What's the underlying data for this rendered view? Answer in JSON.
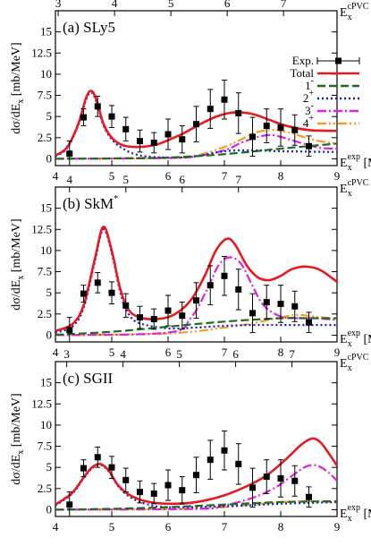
{
  "chart_data": [
    {
      "type": "line",
      "panel_label": "(a) SLy5",
      "xlabel_base": "E",
      "xlabel_sub": "x",
      "xlabel_sup": "exp",
      "xlabel_unit": "[MeV]",
      "top_label_base": "E",
      "top_label_sub": "x",
      "top_label_sup": "cPVC",
      "top_label_unit": "[MeV]",
      "ylabel": "dσ/dE",
      "ylabel_sub": "x",
      "ylabel_unit": " [mb/MeV]",
      "xlim": [
        4,
        9
      ],
      "ylim": [
        -0.8,
        17.5
      ],
      "yticks": [
        0,
        2.5,
        5,
        7.5,
        10,
        12.5,
        15
      ],
      "xticks": [
        4,
        5,
        6,
        7,
        8,
        9
      ],
      "top_ticks": [
        3,
        4,
        5,
        6,
        7
      ],
      "top_offset": 1.05,
      "experiment": {
        "x": [
          4.25,
          4.5,
          4.75,
          5.0,
          5.25,
          5.5,
          5.75,
          6.0,
          6.25,
          6.5,
          6.75,
          7.0,
          7.25,
          7.5,
          7.75,
          8.0,
          8.25,
          8.5
        ],
        "y": [
          0.6,
          4.9,
          6.2,
          5.0,
          3.5,
          2.1,
          1.9,
          2.9,
          2.3,
          4.1,
          5.9,
          7.0,
          5.4,
          2.6,
          3.9,
          3.7,
          3.4,
          1.5
        ],
        "err": [
          1.5,
          1.0,
          1.2,
          1.3,
          1.4,
          1.3,
          1.2,
          1.8,
          1.6,
          2.1,
          2.3,
          2.3,
          2.4,
          2.3,
          2.0,
          2.2,
          1.8,
          1.2
        ]
      },
      "series": [
        {
          "name": "Total",
          "color": "#e8191e",
          "dash": "solid",
          "x": [
            4.0,
            4.2,
            4.4,
            4.55,
            4.65,
            4.75,
            4.85,
            5.0,
            5.2,
            5.5,
            5.8,
            6.0,
            6.3,
            6.6,
            6.9,
            7.2,
            7.5,
            7.8,
            8.1,
            8.5,
            9.0
          ],
          "y": [
            0.4,
            1.3,
            4.0,
            7.3,
            8.0,
            6.5,
            4.2,
            2.5,
            1.6,
            1.4,
            1.7,
            2.2,
            3.1,
            4.2,
            5.1,
            5.5,
            5.3,
            4.6,
            3.9,
            3.4,
            3.3
          ]
        },
        {
          "name": "1-",
          "color": "#1e6b1e",
          "dash": "9,4",
          "x": [
            4.0,
            5.0,
            6.0,
            7.0,
            8.0,
            8.5,
            9.0
          ],
          "y": [
            0.0,
            0.05,
            0.15,
            0.55,
            1.2,
            1.5,
            1.8
          ]
        },
        {
          "name": "2+",
          "color": "#1818c8",
          "dash": "2,3",
          "x": [
            4.0,
            4.2,
            4.4,
            4.55,
            4.65,
            4.75,
            4.85,
            5.0,
            5.2,
            5.5,
            6.0,
            6.5,
            7.0,
            7.5,
            8.0,
            9.0
          ],
          "y": [
            0.3,
            1.2,
            3.9,
            7.1,
            7.8,
            6.3,
            4.0,
            2.3,
            1.2,
            0.4,
            0.15,
            0.3,
            0.9,
            1.0,
            0.9,
            0.8
          ]
        },
        {
          "name": "3-",
          "color": "#e020e0",
          "dash": "10,3,2,3",
          "x": [
            4.0,
            6.0,
            6.5,
            7.0,
            7.3,
            7.6,
            7.85,
            8.1,
            8.4,
            8.7,
            9.0
          ],
          "y": [
            0.0,
            0.1,
            0.3,
            1.0,
            1.9,
            2.6,
            2.8,
            2.4,
            1.8,
            1.3,
            1.2
          ]
        },
        {
          "name": "4+",
          "color": "#f0a020",
          "dash": "10,3,2,3,2,3",
          "x": [
            4.0,
            6.0,
            6.5,
            7.0,
            7.3,
            7.6,
            7.9,
            8.2,
            8.6,
            9.0
          ],
          "y": [
            0.0,
            0.1,
            0.4,
            1.4,
            2.3,
            3.2,
            3.4,
            3.0,
            2.2,
            1.8
          ]
        }
      ]
    },
    {
      "type": "line",
      "panel_label": "(b) SkM",
      "panel_label_sup": "*",
      "xlabel_base": "E",
      "xlabel_sub": "x",
      "xlabel_sup": "exp",
      "xlabel_unit": "[MeV]",
      "top_label_base": "E",
      "top_label_sub": "x",
      "top_label_sup": "cPVC",
      "top_label_unit": "[MeV]",
      "ylabel": "dσ/dE",
      "ylabel_sub": "x",
      "ylabel_unit": " [mb/MeV]",
      "xlim": [
        4,
        9
      ],
      "ylim": [
        -0.8,
        17.5
      ],
      "yticks": [
        0,
        2.5,
        5,
        7.5,
        10,
        12.5,
        15
      ],
      "xticks": [
        4,
        5,
        6,
        7,
        8,
        9
      ],
      "top_ticks": [
        4,
        5,
        6,
        7
      ],
      "top_offset": 0.25,
      "experiment": {
        "x": [
          4.25,
          4.5,
          4.75,
          5.0,
          5.25,
          5.5,
          5.75,
          6.0,
          6.25,
          6.5,
          6.75,
          7.0,
          7.25,
          7.5,
          7.75,
          8.0,
          8.25,
          8.5
        ],
        "y": [
          0.6,
          4.9,
          6.2,
          5.0,
          3.5,
          2.1,
          1.9,
          2.9,
          2.3,
          4.1,
          5.9,
          7.0,
          5.4,
          2.6,
          3.9,
          3.7,
          3.4,
          1.5
        ],
        "err": [
          1.5,
          1.0,
          1.2,
          1.3,
          1.4,
          1.3,
          1.2,
          1.8,
          1.6,
          2.1,
          2.3,
          2.3,
          2.4,
          2.3,
          2.0,
          2.2,
          1.8,
          1.2
        ]
      },
      "series": [
        {
          "name": "Total",
          "color": "#e8191e",
          "dash": "solid",
          "x": [
            4.0,
            4.3,
            4.5,
            4.7,
            4.85,
            5.0,
            5.15,
            5.3,
            5.5,
            5.8,
            6.1,
            6.4,
            6.65,
            6.85,
            7.05,
            7.2,
            7.4,
            7.6,
            7.8,
            8.0,
            8.2,
            8.45,
            8.7,
            9.0
          ],
          "y": [
            0.5,
            1.3,
            3.5,
            9.0,
            12.8,
            10.0,
            5.5,
            3.0,
            2.1,
            1.9,
            2.4,
            4.1,
            7.0,
            10.0,
            11.4,
            10.6,
            8.2,
            6.8,
            6.5,
            7.0,
            7.8,
            8.1,
            7.7,
            6.3
          ]
        },
        {
          "name": "1-",
          "color": "#1e6b1e",
          "dash": "9,4",
          "x": [
            4.0,
            5.0,
            6.0,
            7.0,
            8.0,
            8.5,
            9.0
          ],
          "y": [
            0.05,
            0.4,
            1.0,
            1.6,
            2.0,
            2.0,
            2.0
          ]
        },
        {
          "name": "2+",
          "color": "#1818c8",
          "dash": "2,3",
          "x": [
            4.0,
            4.3,
            4.5,
            4.7,
            4.85,
            5.0,
            5.15,
            5.3,
            5.5,
            6.0,
            6.5,
            7.0,
            7.5,
            8.0,
            9.0
          ],
          "y": [
            0.3,
            1.0,
            3.2,
            8.7,
            12.5,
            9.7,
            5.1,
            2.5,
            1.4,
            0.8,
            0.9,
            1.1,
            1.2,
            1.2,
            1.2
          ]
        },
        {
          "name": "3-",
          "color": "#e020e0",
          "dash": "10,3,2,3",
          "x": [
            4.0,
            6.0,
            6.4,
            6.7,
            6.9,
            7.1,
            7.3,
            7.5,
            7.7,
            8.0,
            8.3,
            8.6,
            9.0
          ],
          "y": [
            0.0,
            0.3,
            2.0,
            5.5,
            8.3,
            9.2,
            8.4,
            5.8,
            3.5,
            2.2,
            2.0,
            2.0,
            1.8
          ]
        },
        {
          "name": "4+",
          "color": "#f0a020",
          "dash": "10,3,2,3,2,3",
          "x": [
            4.0,
            6.0,
            7.0,
            7.5,
            8.0,
            8.3,
            8.6,
            9.0
          ],
          "y": [
            0.0,
            0.2,
            0.9,
            1.4,
            2.1,
            2.4,
            2.2,
            1.9
          ]
        }
      ]
    },
    {
      "type": "line",
      "panel_label": "(c) SGII",
      "xlabel_base": "E",
      "xlabel_sub": "x",
      "xlabel_sup": "exp",
      "xlabel_unit": "[MeV]",
      "top_label_base": "E",
      "top_label_sub": "x",
      "top_label_sup": "cPVC",
      "top_label_unit": "[MeV]",
      "ylabel": "dσ/dE",
      "ylabel_sub": "x",
      "ylabel_unit": " [mb/MeV]",
      "xlim": [
        4,
        9
      ],
      "ylim": [
        -0.8,
        17.5
      ],
      "yticks": [
        0,
        2.5,
        5,
        7.5,
        10,
        12.5,
        15
      ],
      "xticks": [
        4,
        5,
        6,
        7,
        8,
        9
      ],
      "top_ticks": [
        3,
        4,
        5,
        6,
        7
      ],
      "top_offset": 1.2,
      "experiment": {
        "x": [
          4.25,
          4.5,
          4.75,
          5.0,
          5.25,
          5.5,
          5.75,
          6.0,
          6.25,
          6.5,
          6.75,
          7.0,
          7.25,
          7.5,
          7.75,
          8.0,
          8.25,
          8.5
        ],
        "y": [
          0.6,
          4.9,
          6.2,
          5.0,
          3.5,
          2.1,
          1.9,
          2.9,
          2.3,
          4.1,
          5.9,
          7.0,
          5.4,
          2.6,
          3.9,
          3.7,
          3.4,
          1.5
        ],
        "err": [
          1.5,
          1.0,
          1.2,
          1.3,
          1.4,
          1.3,
          1.2,
          1.8,
          1.6,
          2.1,
          2.3,
          2.3,
          2.4,
          2.3,
          2.0,
          2.2,
          1.8,
          1.2
        ]
      },
      "series": [
        {
          "name": "Total",
          "color": "#e8191e",
          "dash": "solid",
          "x": [
            4.0,
            4.3,
            4.5,
            4.65,
            4.8,
            4.95,
            5.1,
            5.3,
            5.6,
            6.0,
            6.5,
            7.0,
            7.5,
            7.8,
            8.1,
            8.35,
            8.55,
            8.7,
            8.85,
            9.0
          ],
          "y": [
            0.6,
            2.0,
            3.8,
            5.0,
            5.4,
            4.6,
            3.0,
            1.8,
            1.0,
            0.7,
            0.9,
            1.7,
            3.1,
            4.3,
            6.0,
            7.6,
            8.4,
            8.0,
            6.7,
            5.2
          ]
        },
        {
          "name": "1-",
          "color": "#1e6b1e",
          "dash": "9,4",
          "x": [
            4.0,
            5.0,
            6.0,
            7.0,
            8.0,
            9.0
          ],
          "y": [
            0.0,
            0.1,
            0.3,
            0.6,
            0.9,
            1.0
          ]
        },
        {
          "name": "2+",
          "color": "#1818c8",
          "dash": "2,3",
          "x": [
            4.0,
            4.3,
            4.5,
            4.65,
            4.8,
            4.95,
            5.1,
            5.3,
            5.6,
            6.0,
            7.0,
            8.0,
            9.0
          ],
          "y": [
            0.5,
            1.9,
            3.7,
            4.9,
            5.3,
            4.5,
            2.9,
            1.6,
            0.7,
            0.3,
            0.4,
            0.7,
            0.9
          ]
        },
        {
          "name": "3-",
          "color": "#e020e0",
          "dash": "10,3,2,3",
          "x": [
            4.0,
            6.5,
            7.0,
            7.5,
            7.9,
            8.2,
            8.45,
            8.65,
            8.85,
            9.0
          ],
          "y": [
            0.0,
            0.1,
            0.5,
            1.4,
            2.6,
            4.0,
            5.1,
            5.2,
            4.4,
            3.4
          ]
        },
        {
          "name": "4+",
          "color": "#f0a020",
          "dash": "10,3,2,3,2,3",
          "x": [
            4.0,
            6.5,
            7.0,
            7.5,
            8.0,
            8.5,
            9.0
          ],
          "y": [
            0.0,
            0.1,
            0.3,
            0.6,
            0.9,
            1.0,
            0.9
          ]
        }
      ]
    }
  ],
  "legend": {
    "entries": [
      {
        "label": "Exp.",
        "kind": "exp",
        "color": "#000000"
      },
      {
        "label": "Total",
        "kind": "line",
        "color": "#e8191e",
        "dash": "solid"
      },
      {
        "label": "1",
        "sup": "-",
        "kind": "line",
        "color": "#1e6b1e",
        "dash": "9,4"
      },
      {
        "label": "2",
        "sup": "+",
        "kind": "line",
        "color": "#1818c8",
        "dash": "2,3"
      },
      {
        "label": "3",
        "sup": "-",
        "kind": "line",
        "color": "#e020e0",
        "dash": "10,3,2,3"
      },
      {
        "label": "4",
        "sup": "+",
        "kind": "line",
        "color": "#f0a020",
        "dash": "10,3,2,3,2,3"
      }
    ]
  }
}
